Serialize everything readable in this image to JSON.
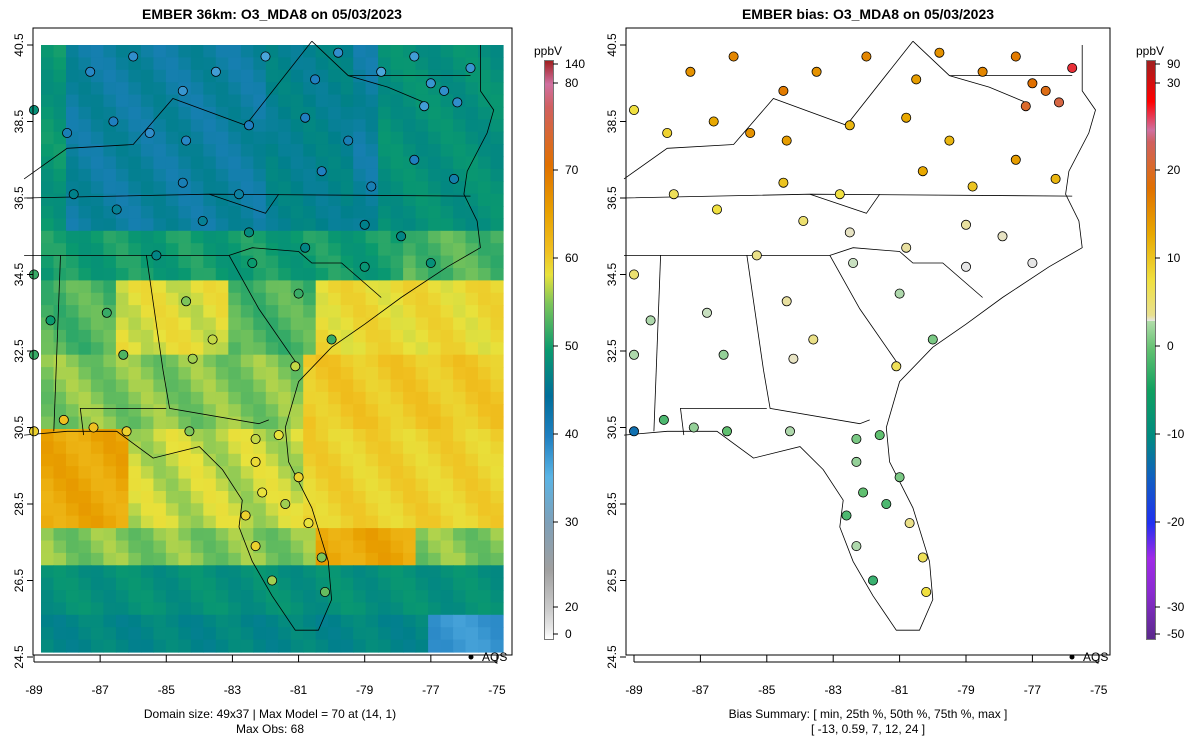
{
  "left": {
    "title": "EMBER 36km: O3_MDA8 on 05/03/2023",
    "colorbar_unit": "ppbV",
    "colorbar_ticks": [
      "140",
      "80",
      "70",
      "60",
      "50",
      "40",
      "30",
      "20",
      "0"
    ],
    "footer_line1": "Domain size: 49x37 | Max Model = 70 at (14, 1)",
    "footer_line2": "Max Obs: 68",
    "legend": "AQS"
  },
  "right": {
    "title": "EMBER bias: O3_MDA8 on 05/03/2023",
    "colorbar_unit": "ppbV",
    "colorbar_ticks": [
      "90",
      "30",
      "20",
      "10",
      "0",
      "-10",
      "-20",
      "-30",
      "-50"
    ],
    "footer_line1": "Bias Summary: [ min, 25th %, 50th %, 75th %, max ]",
    "footer_line2": "[ -13,  0.59,  7,  12,  24 ]",
    "legend": "AQS"
  },
  "axes": {
    "x_ticks": [
      "-89",
      "-87",
      "-85",
      "-83",
      "-81",
      "-79",
      "-77",
      "-75"
    ],
    "y_ticks": [
      "40.5",
      "38.5",
      "36.5",
      "34.5",
      "32.5",
      "30.5",
      "28.5",
      "26.5",
      "24.5"
    ]
  },
  "chart_data": {
    "type": "heatmap",
    "variable": "O3_MDA8",
    "units": "ppbV",
    "date": "05/03/2023",
    "grid": {
      "rows": 49,
      "cols": 37
    },
    "lon_range": [
      -89.3,
      -74.6
    ],
    "lat_range": [
      24.5,
      40.9
    ],
    "stats": {
      "max_model": 70,
      "max_obs": 68,
      "bias_min": -13,
      "bias_p25": 0.59,
      "bias_median": 7,
      "bias_p75": 12,
      "bias_max": 24
    },
    "stations_fields": [
      "lon",
      "lat",
      "obs",
      "bias"
    ],
    "stations": [
      [
        -77.5,
        40.2,
        36,
        14
      ],
      [
        -77,
        39.5,
        37,
        15
      ],
      [
        -76.6,
        39.3,
        38,
        16
      ],
      [
        -77.2,
        38.9,
        36,
        17
      ],
      [
        -78.5,
        39.8,
        35,
        13
      ],
      [
        -79.8,
        40.3,
        38,
        12
      ],
      [
        -80.5,
        39.6,
        40,
        11
      ],
      [
        -82,
        40.2,
        35,
        13
      ],
      [
        -83.5,
        39.8,
        36,
        12
      ],
      [
        -84.5,
        39.3,
        37,
        14
      ],
      [
        -86,
        40.2,
        38,
        13
      ],
      [
        -87.3,
        39.8,
        39,
        12
      ],
      [
        -88,
        38.2,
        41,
        7
      ],
      [
        -86.6,
        38.5,
        40,
        10
      ],
      [
        -85.5,
        38.2,
        38,
        12
      ],
      [
        -84.4,
        38.0,
        39,
        11
      ],
      [
        -82.5,
        38.4,
        40,
        9
      ],
      [
        -80.8,
        38.6,
        40,
        10
      ],
      [
        -79.5,
        38.0,
        41,
        9
      ],
      [
        -77.5,
        37.5,
        40,
        11
      ],
      [
        -76.3,
        37.0,
        42,
        9
      ],
      [
        -78.8,
        36.8,
        41,
        8
      ],
      [
        -80.3,
        37.2,
        40,
        10
      ],
      [
        -82.8,
        36.6,
        43,
        6
      ],
      [
        -84.5,
        36.9,
        41,
        8
      ],
      [
        -86.5,
        36.2,
        44,
        6
      ],
      [
        -87.8,
        36.6,
        45,
        5
      ],
      [
        -85.3,
        35.0,
        46,
        3
      ],
      [
        -83.9,
        35.9,
        44,
        4
      ],
      [
        -82.5,
        35.6,
        47,
        1
      ],
      [
        -80.8,
        35.2,
        46,
        2
      ],
      [
        -79,
        35.8,
        45,
        2
      ],
      [
        -77.9,
        35.5,
        46,
        1
      ],
      [
        -77.0,
        34.8,
        48,
        0
      ],
      [
        -79,
        34.7,
        49,
        0
      ],
      [
        -81.0,
        34.0,
        52,
        -2
      ],
      [
        -82.4,
        34.8,
        50,
        -1
      ],
      [
        -84.4,
        33.8,
        55,
        2
      ],
      [
        -86.8,
        33.5,
        52,
        -1
      ],
      [
        -88.5,
        33.3,
        50,
        -2
      ],
      [
        -86.3,
        32.4,
        53,
        -3
      ],
      [
        -84.2,
        32.3,
        56,
        1
      ],
      [
        -83.6,
        32.8,
        57,
        3
      ],
      [
        -81.1,
        32.1,
        57,
        5
      ],
      [
        -80.0,
        32.8,
        52,
        -4
      ],
      [
        -88.1,
        30.7,
        62,
        -6
      ],
      [
        -87.2,
        30.5,
        62,
        -3
      ],
      [
        -86.2,
        30.4,
        60,
        -5
      ],
      [
        -84.3,
        30.4,
        55,
        -2
      ],
      [
        -82.3,
        30.2,
        57,
        -4
      ],
      [
        -81.6,
        30.3,
        58,
        -5
      ],
      [
        -81.0,
        29.2,
        60,
        -4
      ],
      [
        -82.3,
        29.6,
        59,
        -3
      ],
      [
        -82.6,
        28.2,
        60,
        -6
      ],
      [
        -82.1,
        28.8,
        58,
        -5
      ],
      [
        -81.4,
        28.5,
        56,
        -6
      ],
      [
        -80.7,
        28.0,
        58,
        3
      ],
      [
        -80.3,
        27.1,
        55,
        5
      ],
      [
        -80.2,
        26.2,
        54,
        6
      ],
      [
        -81.8,
        26.5,
        56,
        -7
      ],
      [
        -82.3,
        27.4,
        60,
        -2
      ],
      [
        -89,
        38.8,
        48,
        6
      ],
      [
        -89.0,
        34.5,
        52,
        4
      ],
      [
        -89,
        32.4,
        52,
        -2
      ],
      [
        -89,
        30.4,
        60,
        -13
      ],
      [
        -75.8,
        39.9,
        37,
        24
      ],
      [
        -76.2,
        39.0,
        38,
        18
      ]
    ]
  }
}
